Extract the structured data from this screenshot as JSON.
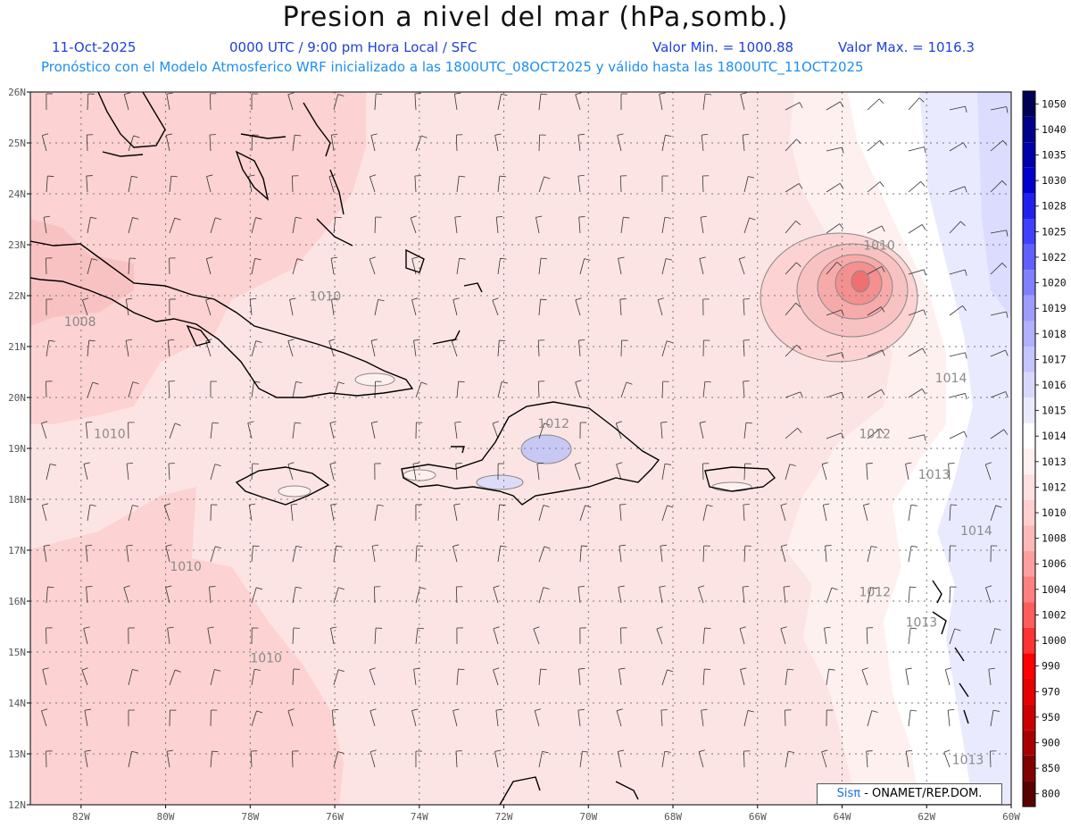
{
  "header": {
    "title": "Presion a nivel del mar (hPa,somb.)",
    "date": "11-Oct-2025",
    "time_info": "0000 UTC / 9:00 pm Hora Local / SFC",
    "min_value": "Valor Min. = 1000.88",
    "max_value": "Valor Max. = 1016.3",
    "forecast_info": "Pronóstico con el Modelo Atmosferico WRF inicializado a las 1800UTC_08OCT2025 y válido hasta las  1800UTC_11OCT2025"
  },
  "map": {
    "lat_labels": [
      "26N",
      "25N",
      "24N",
      "23N",
      "22N",
      "21N",
      "20N",
      "19N",
      "18N",
      "17N",
      "16N",
      "15N",
      "14N",
      "13N",
      "12N"
    ],
    "lon_labels": [
      "82W",
      "80W",
      "78W",
      "76W",
      "74W",
      "72W",
      "70W",
      "68W",
      "66W",
      "64W",
      "62W",
      "60W"
    ],
    "lat_range": [
      12,
      26
    ],
    "lon_range": [
      -83.2,
      -60
    ],
    "isobar_labels": [
      {
        "text": "1010",
        "lon": -63.5,
        "lat": 22.9
      },
      {
        "text": "1010",
        "lon": -76.6,
        "lat": 21.9
      },
      {
        "text": "1008",
        "lon": -82.4,
        "lat": 21.4
      },
      {
        "text": "1010",
        "lon": -81.7,
        "lat": 19.2
      },
      {
        "text": "1012",
        "lon": -71.2,
        "lat": 19.4
      },
      {
        "text": "1012",
        "lon": -63.6,
        "lat": 19.2
      },
      {
        "text": "1013",
        "lon": -62.2,
        "lat": 18.4
      },
      {
        "text": "1014",
        "lon": -61.8,
        "lat": 20.3
      },
      {
        "text": "1014",
        "lon": -61.2,
        "lat": 17.3
      },
      {
        "text": "1010",
        "lon": -79.9,
        "lat": 16.6
      },
      {
        "text": "1012",
        "lon": -63.6,
        "lat": 16.1
      },
      {
        "text": "1013",
        "lon": -62.5,
        "lat": 15.5
      },
      {
        "text": "1010",
        "lon": -78.0,
        "lat": 14.8
      },
      {
        "text": "1013",
        "lon": -61.4,
        "lat": 12.8
      }
    ]
  },
  "colorbar": {
    "levels": [
      "800",
      "850",
      "900",
      "950",
      "970",
      "990",
      "1000",
      "1002",
      "1004",
      "1006",
      "1008",
      "1010",
      "1012",
      "1013",
      "1014",
      "1015",
      "1016",
      "1017",
      "1018",
      "1019",
      "1020",
      "1022",
      "1025",
      "1028",
      "1030",
      "1035",
      "1040",
      "1050"
    ],
    "colors": [
      "#5a0000",
      "#800000",
      "#a80000",
      "#cc0000",
      "#e60000",
      "#ff0000",
      "#ff3333",
      "#ff5c5c",
      "#ff8080",
      "#ff9e9e",
      "#ffb8b8",
      "#ffcece",
      "#ffe0e0",
      "#fff0f0",
      "#ffffff",
      "#eaeaff",
      "#d8d8ff",
      "#c4c4ff",
      "#b0b0ff",
      "#9c9cff",
      "#8080ff",
      "#6060ff",
      "#4040ff",
      "#2020ee",
      "#0000cc",
      "#0000aa",
      "#000088",
      "#000055"
    ]
  },
  "credit": {
    "logo": "Sisπ",
    "text": " - ONAMET/REP.DOM."
  }
}
